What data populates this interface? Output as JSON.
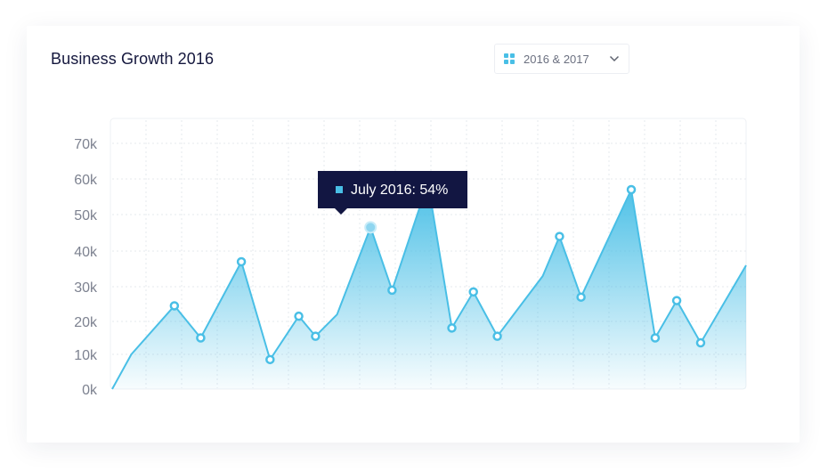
{
  "header": {
    "title": "Business Growth 2016"
  },
  "filter": {
    "selected": "2016 & 2017",
    "icon": "grid-icon",
    "chevron_icon": "chevron-down-icon"
  },
  "tooltip": {
    "text": "July 2016: 54%",
    "marker_color": "#49bfe6"
  },
  "colors": {
    "line": "#49bfe6",
    "fill_top": "#49bfe6",
    "fill_bottom": "#ffffff",
    "tooltip_bg": "#121642"
  },
  "chart_data": {
    "type": "area",
    "title": "Business Growth 2016",
    "xlabel": "",
    "ylabel": "",
    "ylim": [
      0,
      75000
    ],
    "yticks": [
      {
        "value": 0,
        "label": "0k"
      },
      {
        "value": 10000,
        "label": "10k"
      },
      {
        "value": 20000,
        "label": "20k"
      },
      {
        "value": 30000,
        "label": "30k"
      },
      {
        "value": 40000,
        "label": "40k"
      },
      {
        "value": 50000,
        "label": "50k"
      },
      {
        "value": 60000,
        "label": "60k"
      },
      {
        "value": 70000,
        "label": "70k"
      }
    ],
    "grid": true,
    "legend": "none",
    "points": [
      {
        "x": 0.0,
        "y": 0,
        "marker": false
      },
      {
        "x": 0.8,
        "y": 10000,
        "marker": false
      },
      {
        "x": 2.6,
        "y": 24500,
        "marker": true
      },
      {
        "x": 3.7,
        "y": 15000,
        "marker": true
      },
      {
        "x": 5.4,
        "y": 37000,
        "marker": true
      },
      {
        "x": 6.6,
        "y": 8500,
        "marker": true
      },
      {
        "x": 7.8,
        "y": 21500,
        "marker": true
      },
      {
        "x": 8.5,
        "y": 15500,
        "marker": true
      },
      {
        "x": 9.4,
        "y": 22000,
        "marker": false
      },
      {
        "x": 10.8,
        "y": 46500,
        "marker": true,
        "highlight": true
      },
      {
        "x": 11.7,
        "y": 29000,
        "marker": true
      },
      {
        "x": 13.2,
        "y": 59000,
        "marker": true
      },
      {
        "x": 14.2,
        "y": 18000,
        "marker": true
      },
      {
        "x": 15.1,
        "y": 28500,
        "marker": true
      },
      {
        "x": 16.1,
        "y": 15500,
        "marker": true
      },
      {
        "x": 18.0,
        "y": 33000,
        "marker": false
      },
      {
        "x": 18.7,
        "y": 44000,
        "marker": true
      },
      {
        "x": 19.6,
        "y": 27000,
        "marker": true
      },
      {
        "x": 21.7,
        "y": 57000,
        "marker": true
      },
      {
        "x": 22.7,
        "y": 15000,
        "marker": true
      },
      {
        "x": 23.6,
        "y": 26000,
        "marker": true
      },
      {
        "x": 24.6,
        "y": 13500,
        "marker": true
      },
      {
        "x": 26.5,
        "y": 36000,
        "marker": false
      }
    ]
  }
}
